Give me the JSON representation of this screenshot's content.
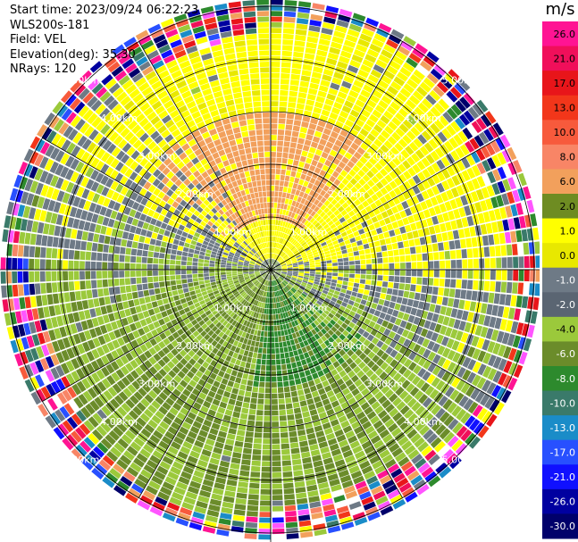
{
  "meta": {
    "start_time": "Start time: 2023/09/24 06:22:23",
    "instrument": "WLS200s-181",
    "field": "Field: VEL",
    "elevation": "Elevation(deg): 35.30",
    "nrays": "NRays: 120"
  },
  "colorbar": {
    "unit": "m/s",
    "ticks": [
      "26.0",
      "21.0",
      "17.0",
      "13.0",
      "10.0",
      "8.0",
      "6.0",
      "2.0",
      "1.0",
      "0.0",
      "-1.0",
      "-2.0",
      "-4.0",
      "-6.0",
      "-8.0",
      "-10.0",
      "-13.0",
      "-17.0",
      "-21.0",
      "-26.0",
      "-30.0"
    ],
    "colors": [
      "#ff1493",
      "#f00f5a",
      "#e8151a",
      "#f2361a",
      "#f75a3c",
      "#f88566",
      "#f2a05c",
      "#6e8c22",
      "#ffff00",
      "#e8e800",
      "#6e7a86",
      "#5a6572",
      "#9bc93b",
      "#6b8c2a",
      "#2d8a2d",
      "#3a7a6a",
      "#1a8cc8",
      "#2850ff",
      "#1010ff",
      "#0000a0",
      "#00006b"
    ]
  },
  "chart_data": {
    "type": "ppi",
    "field": "VEL",
    "unit": "m/s",
    "nrays": 120,
    "elevation_deg": 35.3,
    "range_rings_km": [
      1.0,
      2.0,
      3.0,
      4.0,
      5.0
    ],
    "ring_labels": [
      "1.00km",
      "2.00km",
      "3.00km",
      "4.00km",
      "5.00km"
    ],
    "max_range_km": 6.5,
    "colormap_levels": [
      -30,
      -26,
      -21,
      -17,
      -13,
      -10,
      -8,
      -6,
      -4,
      -2,
      -1,
      0,
      1,
      2,
      6,
      8,
      10,
      13,
      17,
      21,
      26
    ],
    "spokes_deg": [
      0,
      30,
      60,
      90,
      120,
      150,
      180,
      210,
      240,
      270,
      300,
      330
    ],
    "grid": true,
    "patterns": {
      "inner_signal_range_km": 4.6,
      "north_sector": "positive 2 to 6 m/s (yellow/orange)",
      "south_sector": "negative -2 to -6 m/s (green)",
      "outer_region": "noise (random colors)"
    }
  }
}
